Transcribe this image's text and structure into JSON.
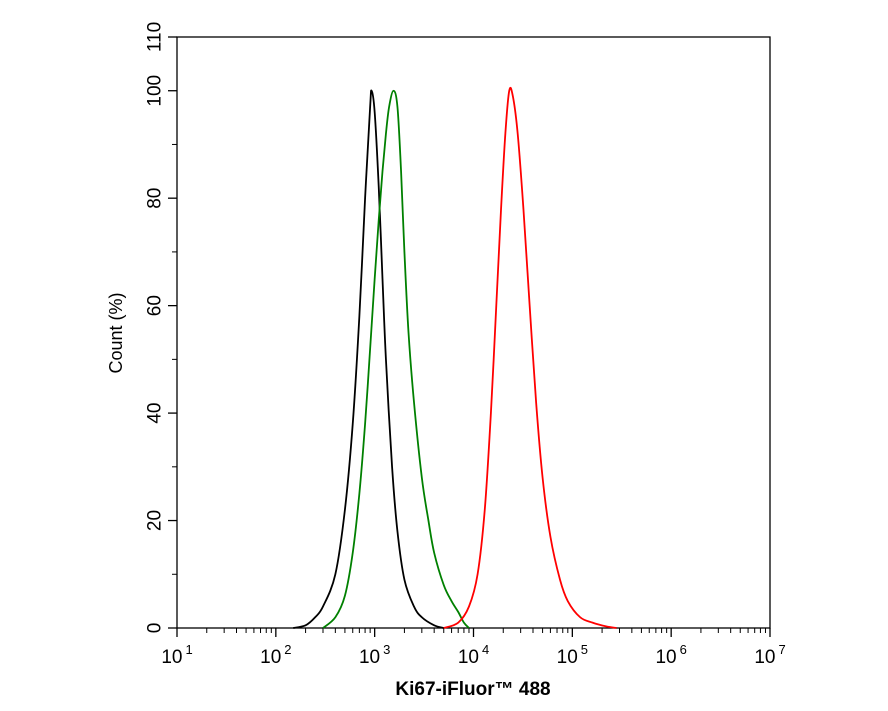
{
  "chart_data": {
    "type": "line",
    "xlabel": "Ki67-iFluor™ 488",
    "ylabel": "Count  (%)",
    "x_scale": "log",
    "xlim": [
      10,
      10000000
    ],
    "ylim": [
      0,
      110
    ],
    "grid": false,
    "x_ticks": [
      {
        "base": "10",
        "exp": "1",
        "value": 10
      },
      {
        "base": "10",
        "exp": "2",
        "value": 100
      },
      {
        "base": "10",
        "exp": "3",
        "value": 1000
      },
      {
        "base": "10",
        "exp": "4",
        "value": 10000
      },
      {
        "base": "10",
        "exp": "5",
        "value": 100000
      },
      {
        "base": "10",
        "exp": "6",
        "value": 1000000
      },
      {
        "base": "10",
        "exp": "7",
        "value": 10000000
      }
    ],
    "y_ticks": [
      "0",
      "20",
      "40",
      "60",
      "80",
      "100",
      "110"
    ],
    "y_tick_values": [
      0,
      20,
      40,
      60,
      80,
      100,
      110
    ],
    "series": [
      {
        "color": "#000000",
        "points": [
          [
            150,
            0
          ],
          [
            200,
            0.5
          ],
          [
            250,
            2
          ],
          [
            300,
            4
          ],
          [
            400,
            10
          ],
          [
            500,
            22
          ],
          [
            600,
            38
          ],
          [
            700,
            58
          ],
          [
            800,
            80
          ],
          [
            900,
            97
          ],
          [
            930,
            100
          ],
          [
            1000,
            96
          ],
          [
            1100,
            82
          ],
          [
            1200,
            65
          ],
          [
            1300,
            50
          ],
          [
            1500,
            30
          ],
          [
            1700,
            18
          ],
          [
            2000,
            9
          ],
          [
            2500,
            4
          ],
          [
            3000,
            2
          ],
          [
            4000,
            0.5
          ],
          [
            5000,
            0
          ]
        ]
      },
      {
        "color": "#008000",
        "points": [
          [
            300,
            0
          ],
          [
            400,
            2
          ],
          [
            500,
            6
          ],
          [
            600,
            14
          ],
          [
            700,
            25
          ],
          [
            800,
            38
          ],
          [
            900,
            52
          ],
          [
            1000,
            65
          ],
          [
            1100,
            76
          ],
          [
            1200,
            85
          ],
          [
            1300,
            92
          ],
          [
            1400,
            97
          ],
          [
            1550,
            100
          ],
          [
            1700,
            97
          ],
          [
            1850,
            85
          ],
          [
            2000,
            70
          ],
          [
            2200,
            55
          ],
          [
            2500,
            42
          ],
          [
            3000,
            28
          ],
          [
            3500,
            20
          ],
          [
            4000,
            14
          ],
          [
            5000,
            8
          ],
          [
            6000,
            5
          ],
          [
            7000,
            3
          ],
          [
            8000,
            1
          ],
          [
            9000,
            0
          ]
        ]
      },
      {
        "color": "#ff0000",
        "points": [
          [
            5000,
            0
          ],
          [
            7000,
            1
          ],
          [
            9000,
            4
          ],
          [
            11000,
            10
          ],
          [
            13000,
            22
          ],
          [
            15000,
            40
          ],
          [
            17000,
            60
          ],
          [
            19000,
            78
          ],
          [
            21000,
            92
          ],
          [
            23000,
            100
          ],
          [
            25000,
            99
          ],
          [
            28000,
            92
          ],
          [
            32000,
            78
          ],
          [
            37000,
            60
          ],
          [
            43000,
            42
          ],
          [
            50000,
            28
          ],
          [
            60000,
            17
          ],
          [
            75000,
            9
          ],
          [
            90000,
            5
          ],
          [
            120000,
            2
          ],
          [
            160000,
            1
          ],
          [
            220000,
            0.3
          ],
          [
            280000,
            0
          ]
        ]
      }
    ]
  }
}
